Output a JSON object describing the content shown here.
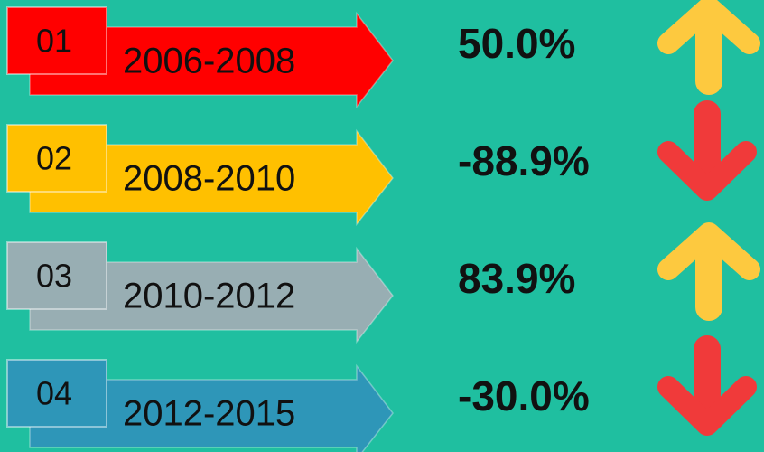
{
  "rows": [
    {
      "number": "01",
      "period": "2006-2008",
      "change": "50.0%",
      "color": "#ff0000"
    },
    {
      "number": "02",
      "period": "2008-2010",
      "change": "-88.9%",
      "color": "#ffc000"
    },
    {
      "number": "03",
      "period": "2010-2012",
      "change": "83.9%",
      "color": "#98aeb3"
    },
    {
      "number": "04",
      "period": "2012-2015",
      "change": "-30.0%",
      "color": "#2e96b8"
    }
  ]
}
